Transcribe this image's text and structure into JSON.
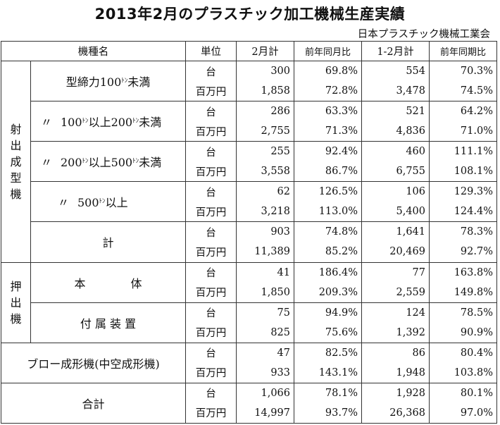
{
  "title": "2013年2月のプラスチック加工機械生産実績",
  "source": "日本プラスチック機械工業会",
  "headers": {
    "category": "機種名",
    "unit": "単位",
    "feb": "2月計",
    "feb_yoy": "前年同月比",
    "janfeb": "1-2月計",
    "janfeb_yoy": "前年同期比"
  },
  "units": {
    "count": "台",
    "value": "百万円"
  },
  "ton_mark": "ﾄﾝ",
  "groups": {
    "injection": [
      "射",
      "出",
      "成",
      "型",
      "機"
    ],
    "extrusion": [
      "押",
      "出",
      "機"
    ]
  },
  "rows": {
    "inj1": {
      "name_pre": "型締力100",
      "name_post": "未満",
      "count": {
        "feb": "300",
        "feb_yoy": "69.8%",
        "janfeb": "554",
        "janfeb_yoy": "70.3%"
      },
      "value": {
        "feb": "1,858",
        "feb_yoy": "72.8%",
        "janfeb": "3,478",
        "janfeb_yoy": "74.5%"
      }
    },
    "inj2": {
      "ditto": "〃",
      "name_a": "100",
      "name_b": "以上200",
      "name_post": "未満",
      "count": {
        "feb": "286",
        "feb_yoy": "63.3%",
        "janfeb": "521",
        "janfeb_yoy": "64.2%"
      },
      "value": {
        "feb": "2,755",
        "feb_yoy": "71.3%",
        "janfeb": "4,836",
        "janfeb_yoy": "71.0%"
      }
    },
    "inj3": {
      "ditto": "〃",
      "name_a": "200",
      "name_b": "以上500",
      "name_post": "未満",
      "count": {
        "feb": "255",
        "feb_yoy": "92.4%",
        "janfeb": "460",
        "janfeb_yoy": "111.1%"
      },
      "value": {
        "feb": "3,558",
        "feb_yoy": "86.7%",
        "janfeb": "6,755",
        "janfeb_yoy": "108.1%"
      }
    },
    "inj4": {
      "ditto": "〃",
      "name_a": "500",
      "name_post": "以上",
      "count": {
        "feb": "62",
        "feb_yoy": "126.5%",
        "janfeb": "106",
        "janfeb_yoy": "129.3%"
      },
      "value": {
        "feb": "3,218",
        "feb_yoy": "113.0%",
        "janfeb": "5,400",
        "janfeb_yoy": "124.4%"
      }
    },
    "inj_total": {
      "name": "計",
      "count": {
        "feb": "903",
        "feb_yoy": "74.8%",
        "janfeb": "1,641",
        "janfeb_yoy": "78.3%"
      },
      "value": {
        "feb": "11,389",
        "feb_yoy": "85.2%",
        "janfeb": "20,469",
        "janfeb_yoy": "92.7%"
      }
    },
    "ext_body": {
      "name": "本　　　　体",
      "count": {
        "feb": "41",
        "feb_yoy": "186.4%",
        "janfeb": "77",
        "janfeb_yoy": "163.8%"
      },
      "value": {
        "feb": "1,850",
        "feb_yoy": "209.3%",
        "janfeb": "2,559",
        "janfeb_yoy": "149.8%"
      }
    },
    "ext_acc": {
      "name": "付 属 装 置",
      "count": {
        "feb": "75",
        "feb_yoy": "94.9%",
        "janfeb": "124",
        "janfeb_yoy": "78.5%"
      },
      "value": {
        "feb": "825",
        "feb_yoy": "75.6%",
        "janfeb": "1,392",
        "janfeb_yoy": "90.9%"
      }
    },
    "blow": {
      "name": "ブロー成形機(中空成形機)",
      "count": {
        "feb": "47",
        "feb_yoy": "82.5%",
        "janfeb": "86",
        "janfeb_yoy": "80.4%"
      },
      "value": {
        "feb": "933",
        "feb_yoy": "143.1%",
        "janfeb": "1,948",
        "janfeb_yoy": "103.8%"
      }
    },
    "grand": {
      "name": "合計",
      "count": {
        "feb": "1,066",
        "feb_yoy": "78.1%",
        "janfeb": "1,928",
        "janfeb_yoy": "80.1%"
      },
      "value": {
        "feb": "14,997",
        "feb_yoy": "93.7%",
        "janfeb": "26,368",
        "janfeb_yoy": "97.0%"
      }
    }
  }
}
